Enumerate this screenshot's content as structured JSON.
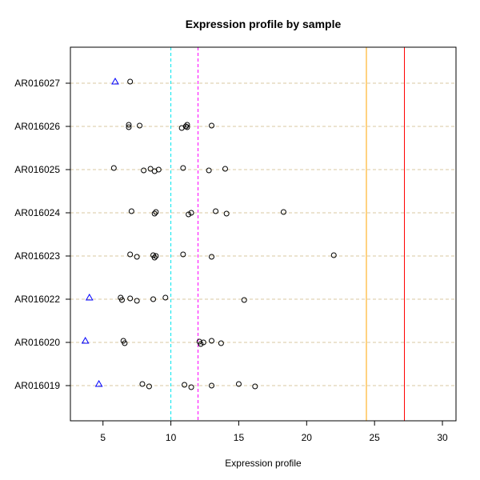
{
  "chart_data": {
    "type": "scatter",
    "title": "Expression profile by sample",
    "xlabel": "Expression profile",
    "ylabel": "",
    "xlim": [
      2.6,
      31.0
    ],
    "xticks": [
      5,
      10,
      15,
      20,
      25,
      30
    ],
    "categories": [
      "AR016019",
      "AR016020",
      "AR016022",
      "AR016023",
      "AR016024",
      "AR016025",
      "AR016026",
      "AR016027"
    ],
    "grid": "horizontal dashed",
    "points": [
      {
        "sample": "AR016019",
        "values": [
          7.9,
          8.4,
          11.0,
          11.5,
          13.0,
          15.0,
          16.2
        ]
      },
      {
        "sample": "AR016020",
        "values": [
          6.5,
          6.6,
          12.1,
          12.2,
          12.4,
          13.0,
          13.7
        ]
      },
      {
        "sample": "AR016022",
        "values": [
          6.3,
          6.4,
          7.0,
          7.5,
          8.7,
          9.6,
          15.4
        ]
      },
      {
        "sample": "AR016023",
        "values": [
          7.0,
          7.5,
          8.7,
          8.8,
          8.9,
          10.9,
          13.0,
          22.0
        ]
      },
      {
        "sample": "AR016024",
        "values": [
          7.1,
          8.8,
          8.9,
          11.3,
          11.5,
          13.3,
          14.1,
          18.3
        ]
      },
      {
        "sample": "AR016025",
        "values": [
          5.8,
          8.0,
          8.5,
          8.8,
          9.1,
          10.9,
          12.8,
          14.0
        ]
      },
      {
        "sample": "AR016026",
        "values": [
          6.9,
          6.9,
          7.7,
          10.8,
          11.1,
          11.2,
          11.2,
          13.0
        ]
      },
      {
        "sample": "AR016027",
        "values": [
          7.0
        ]
      }
    ],
    "triangles": [
      {
        "sample": "AR016019",
        "value": 4.7
      },
      {
        "sample": "AR016020",
        "value": 3.7
      },
      {
        "sample": "AR016022",
        "value": 4.0
      },
      {
        "sample": "AR016027",
        "value": 5.9
      }
    ],
    "vlines": [
      {
        "value": 10.0,
        "color": "#00e5ee",
        "style": "dashed"
      },
      {
        "value": 12.0,
        "color": "#ff00ff",
        "style": "dashed"
      },
      {
        "value": 24.4,
        "color": "#ffa500",
        "style": "solid"
      },
      {
        "value": 27.2,
        "color": "#ff0000",
        "style": "solid"
      }
    ],
    "colors": {
      "points": "#000000",
      "triangles": "#0000ff",
      "grid": "#d8c8a0"
    }
  }
}
